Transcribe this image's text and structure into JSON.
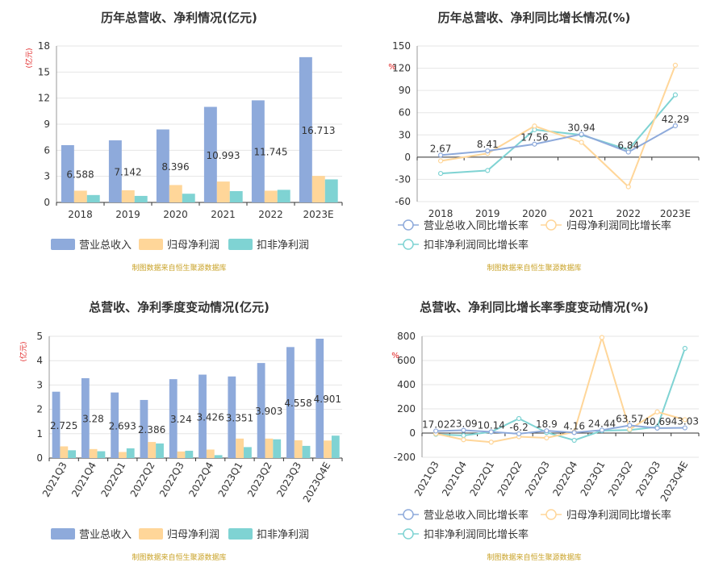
{
  "colors": {
    "revenue": "#8eaadb",
    "parent": "#ffd699",
    "deducted": "#7fd3d3",
    "axis_text": "#333333",
    "grid": "#e6e6e6",
    "source_text": "#c9a227",
    "unit_text": "#e02020"
  },
  "source_note": "制图数据来自恒生聚源数据库",
  "chart_data": [
    {
      "id": "annual-amount",
      "type": "bar",
      "title": "历年总营收、净利情况(亿元)",
      "ylabel": "(亿元)",
      "ylim": [
        0,
        18
      ],
      "yticks": [
        0,
        3,
        6,
        9,
        12,
        15,
        18
      ],
      "categories": [
        "2018",
        "2019",
        "2020",
        "2021",
        "2022",
        "2023E"
      ],
      "series": [
        {
          "name": "营业总收入",
          "values": [
            6.588,
            7.142,
            8.396,
            10.993,
            11.745,
            16.713
          ],
          "labels": [
            "6.588",
            "7.142",
            "8.396",
            "10.993",
            "11.745",
            "16.713"
          ]
        },
        {
          "name": "归母净利润",
          "values": [
            1.35,
            1.4,
            2.0,
            2.4,
            1.35,
            3.05
          ]
        },
        {
          "name": "扣非净利润",
          "values": [
            0.85,
            0.75,
            1.0,
            1.3,
            1.45,
            2.65
          ]
        }
      ],
      "grid": true,
      "legend": "bottom"
    },
    {
      "id": "annual-growth",
      "type": "line",
      "title": "历年总营收、净利同比增长情况(%)",
      "ylabel": "%",
      "ylim": [
        -60,
        150
      ],
      "yticks": [
        -60,
        -30,
        0,
        30,
        60,
        90,
        120,
        150
      ],
      "categories": [
        "2018",
        "2019",
        "2020",
        "2021",
        "2022",
        "2023E"
      ],
      "series": [
        {
          "name": "营业总收入同比增长率",
          "values": [
            2.67,
            8.41,
            17.56,
            30.94,
            6.84,
            42.29
          ],
          "labels": [
            "2.67",
            "8.41",
            "17.56",
            "30.94",
            "6.84",
            "42.29"
          ]
        },
        {
          "name": "归母净利润同比增长率",
          "values": [
            -5,
            5,
            42,
            20,
            -40,
            124
          ]
        },
        {
          "name": "扣非净利润同比增长率",
          "values": [
            -22,
            -18,
            37,
            30,
            10,
            84
          ]
        }
      ],
      "grid": true,
      "legend": "bottom"
    },
    {
      "id": "quarterly-amount",
      "type": "bar",
      "title": "总营收、净利季度变动情况(亿元)",
      "ylabel": "(亿元)",
      "ylim": [
        0,
        5
      ],
      "yticks": [
        0,
        1,
        2,
        3,
        4,
        5
      ],
      "categories": [
        "2021Q3",
        "2021Q4",
        "2022Q1",
        "2022Q2",
        "2022Q3",
        "2022Q4",
        "2023Q1",
        "2023Q2",
        "2023Q3",
        "2023Q4E"
      ],
      "series": [
        {
          "name": "营业总收入",
          "values": [
            2.725,
            3.28,
            2.693,
            2.386,
            3.24,
            3.426,
            3.351,
            3.903,
            4.558,
            4.901
          ],
          "labels": [
            "2.725",
            "3.28",
            "2.693",
            "2.386",
            "3.24",
            "3.426",
            "3.351",
            "3.903",
            "4.558",
            "4.901"
          ]
        },
        {
          "name": "归母净利润",
          "values": [
            0.48,
            0.37,
            0.25,
            0.66,
            0.27,
            0.35,
            0.8,
            0.8,
            0.73,
            0.72
          ]
        },
        {
          "name": "扣非净利润",
          "values": [
            0.32,
            0.28,
            0.4,
            0.6,
            0.3,
            0.12,
            0.45,
            0.77,
            0.5,
            0.92
          ]
        }
      ],
      "grid": true,
      "legend": "bottom"
    },
    {
      "id": "quarterly-growth",
      "type": "line",
      "title": "总营收、净利同比增长率季度变动情况(%)",
      "ylabel": "%",
      "ylim": [
        -200,
        800
      ],
      "yticks": [
        -200,
        0,
        200,
        400,
        600,
        800
      ],
      "categories": [
        "2021Q3",
        "2021Q4",
        "2022Q1",
        "2022Q2",
        "2022Q3",
        "2022Q4",
        "2023Q1",
        "2023Q2",
        "2023Q3",
        "2023Q4E"
      ],
      "series": [
        {
          "name": "营业总收入同比增长率",
          "values": [
            17.02,
            23.09,
            10.14,
            -6.2,
            18.9,
            4.16,
            24.44,
            63.57,
            40.69,
            43.03
          ],
          "labels": [
            "17.02",
            "23.09",
            "10.14",
            "-6.2",
            "18.9",
            "4.16",
            "24.44",
            "63.57",
            "40.69",
            "43.03"
          ]
        },
        {
          "name": "归母净利润同比增长率",
          "values": [
            -5,
            -55,
            -75,
            -30,
            -40,
            10,
            790,
            30,
            175,
            110
          ]
        },
        {
          "name": "扣非净利润同比增长率",
          "values": [
            -10,
            -20,
            10,
            120,
            5,
            -60,
            20,
            25,
            50,
            700
          ]
        }
      ],
      "grid": true,
      "legend": "bottom"
    }
  ]
}
